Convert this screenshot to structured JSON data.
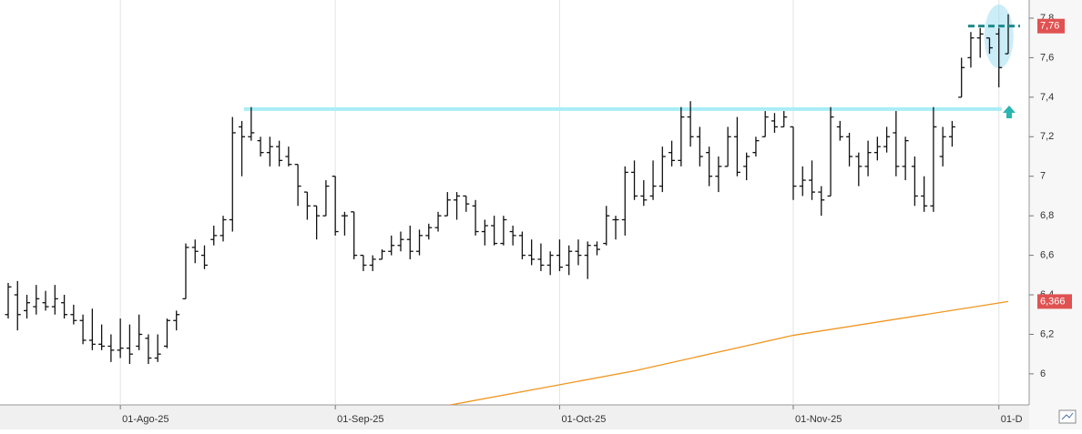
{
  "chart_data": {
    "type": "ohlc",
    "categories": [
      null,
      null,
      null,
      null,
      null,
      null,
      null,
      null,
      null,
      null,
      null,
      null,
      "01-Ago-25",
      null,
      null,
      null,
      null,
      null,
      null,
      null,
      null,
      null,
      null,
      null,
      null,
      null,
      null,
      null,
      null,
      null,
      null,
      null,
      null,
      null,
      null,
      "01-Sep-25",
      null,
      null,
      null,
      null,
      null,
      null,
      null,
      null,
      null,
      null,
      null,
      null,
      null,
      null,
      null,
      null,
      null,
      null,
      null,
      null,
      null,
      null,
      null,
      "01-Oct-25",
      null,
      null,
      null,
      null,
      null,
      null,
      null,
      null,
      null,
      null,
      null,
      null,
      null,
      null,
      null,
      null,
      null,
      null,
      null,
      null,
      null,
      null,
      null,
      null,
      "01-Nov-25",
      null,
      null,
      null,
      null,
      null,
      null,
      null,
      null,
      null,
      null,
      null,
      null,
      null,
      null,
      null,
      null,
      null,
      null,
      null,
      null,
      null,
      "01-D",
      null
    ],
    "bars": [
      [
        6.3,
        6.46,
        6.28,
        6.44
      ],
      [
        6.4,
        6.47,
        6.22,
        6.3
      ],
      [
        6.32,
        6.4,
        6.28,
        6.36
      ],
      [
        6.34,
        6.45,
        6.3,
        6.38
      ],
      [
        6.36,
        6.42,
        6.32,
        6.34
      ],
      [
        6.34,
        6.45,
        6.3,
        6.38
      ],
      [
        6.36,
        6.4,
        6.28,
        6.3
      ],
      [
        6.3,
        6.35,
        6.25,
        6.27
      ],
      [
        6.27,
        6.3,
        6.15,
        6.17
      ],
      [
        6.17,
        6.33,
        6.12,
        6.15
      ],
      [
        6.15,
        6.25,
        6.12,
        6.14
      ],
      [
        6.14,
        6.2,
        6.06,
        6.12
      ],
      [
        6.12,
        6.28,
        6.08,
        6.13
      ],
      [
        6.13,
        6.25,
        6.05,
        6.1
      ],
      [
        6.14,
        6.3,
        6.12,
        6.2
      ],
      [
        6.18,
        6.2,
        6.05,
        6.08
      ],
      [
        6.08,
        6.2,
        6.06,
        6.1
      ],
      [
        6.14,
        6.28,
        6.13,
        6.27
      ],
      [
        6.27,
        6.32,
        6.22,
        6.3
      ],
      [
        6.38,
        6.66,
        6.38,
        6.64
      ],
      [
        6.64,
        6.68,
        6.56,
        6.62
      ],
      [
        6.6,
        6.65,
        6.53,
        6.55
      ],
      [
        6.68,
        6.75,
        6.65,
        6.7
      ],
      [
        6.7,
        6.8,
        6.67,
        6.78
      ],
      [
        6.78,
        7.3,
        6.72,
        7.22
      ],
      [
        7.25,
        7.28,
        7.0,
        7.2
      ],
      [
        7.2,
        7.35,
        7.18,
        7.22
      ],
      [
        7.18,
        7.2,
        7.1,
        7.12
      ],
      [
        7.12,
        7.2,
        7.05,
        7.15
      ],
      [
        7.15,
        7.18,
        7.05,
        7.08
      ],
      [
        7.1,
        7.15,
        7.05,
        7.06
      ],
      [
        7.06,
        7.06,
        6.85,
        6.95
      ],
      [
        6.92,
        6.92,
        6.78,
        6.85
      ],
      [
        6.85,
        6.85,
        6.68,
        6.8
      ],
      [
        6.8,
        6.98,
        6.8,
        6.95
      ],
      [
        7.0,
        7.0,
        6.7,
        6.72
      ],
      [
        6.8,
        6.82,
        6.7,
        6.8
      ],
      [
        6.82,
        6.82,
        6.58,
        6.6
      ],
      [
        6.6,
        6.6,
        6.52,
        6.55
      ],
      [
        6.55,
        6.6,
        6.52,
        6.58
      ],
      [
        6.58,
        6.63,
        6.58,
        6.62
      ],
      [
        6.62,
        6.7,
        6.6,
        6.65
      ],
      [
        6.65,
        6.72,
        6.62,
        6.68
      ],
      [
        6.68,
        6.75,
        6.58,
        6.62
      ],
      [
        6.62,
        6.73,
        6.6,
        6.7
      ],
      [
        6.7,
        6.76,
        6.68,
        6.74
      ],
      [
        6.74,
        6.82,
        6.72,
        6.8
      ],
      [
        6.8,
        6.92,
        6.8,
        6.88
      ],
      [
        6.88,
        6.92,
        6.78,
        6.9
      ],
      [
        6.9,
        6.9,
        6.82,
        6.86
      ],
      [
        6.85,
        6.88,
        6.7,
        6.72
      ],
      [
        6.72,
        6.78,
        6.65,
        6.75
      ],
      [
        6.75,
        6.8,
        6.65,
        6.66
      ],
      [
        6.66,
        6.8,
        6.65,
        6.78
      ],
      [
        6.72,
        6.75,
        6.65,
        6.7
      ],
      [
        6.7,
        6.72,
        6.58,
        6.6
      ],
      [
        6.6,
        6.68,
        6.55,
        6.58
      ],
      [
        6.58,
        6.66,
        6.52,
        6.55
      ],
      [
        6.55,
        6.62,
        6.5,
        6.6
      ],
      [
        6.6,
        6.68,
        6.52,
        6.54
      ],
      [
        6.55,
        6.65,
        6.5,
        6.62
      ],
      [
        6.62,
        6.68,
        6.55,
        6.6
      ],
      [
        6.6,
        6.67,
        6.48,
        6.65
      ],
      [
        6.65,
        6.67,
        6.6,
        6.63
      ],
      [
        6.66,
        6.85,
        6.65,
        6.8
      ],
      [
        6.78,
        6.8,
        6.68,
        6.78
      ],
      [
        6.78,
        7.05,
        6.7,
        7.02
      ],
      [
        7.02,
        7.08,
        6.88,
        6.9
      ],
      [
        6.9,
        6.98,
        6.85,
        6.88
      ],
      [
        6.9,
        7.08,
        6.88,
        6.95
      ],
      [
        6.95,
        7.15,
        6.92,
        7.1
      ],
      [
        7.12,
        7.18,
        7.05,
        7.08
      ],
      [
        7.08,
        7.35,
        7.05,
        7.3
      ],
      [
        7.3,
        7.38,
        7.15,
        7.2
      ],
      [
        7.2,
        7.25,
        7.05,
        7.1
      ],
      [
        7.12,
        7.15,
        6.95,
        7.0
      ],
      [
        7.0,
        7.1,
        6.92,
        7.05
      ],
      [
        7.05,
        7.25,
        7.05,
        7.2
      ],
      [
        7.2,
        7.3,
        7.0,
        7.02
      ],
      [
        7.05,
        7.12,
        6.98,
        7.1
      ],
      [
        7.12,
        7.2,
        7.1,
        7.18
      ],
      [
        7.2,
        7.33,
        7.2,
        7.3
      ],
      [
        7.28,
        7.32,
        7.22,
        7.25
      ],
      [
        7.25,
        7.33,
        7.25,
        7.3
      ],
      [
        7.25,
        7.25,
        6.88,
        6.95
      ],
      [
        6.95,
        7.05,
        6.9,
        6.98
      ],
      [
        6.98,
        7.08,
        6.88,
        6.92
      ],
      [
        6.92,
        6.95,
        6.8,
        6.88
      ],
      [
        6.9,
        7.35,
        6.9,
        7.3
      ],
      [
        7.25,
        7.28,
        7.18,
        7.2
      ],
      [
        7.2,
        7.22,
        7.05,
        7.1
      ],
      [
        7.1,
        7.12,
        6.95,
        7.05
      ],
      [
        7.05,
        7.18,
        7.0,
        7.12
      ],
      [
        7.12,
        7.2,
        7.08,
        7.15
      ],
      [
        7.15,
        7.25,
        7.12,
        7.2
      ],
      [
        7.22,
        7.33,
        7.0,
        7.05
      ],
      [
        7.05,
        7.2,
        6.98,
        7.18
      ],
      [
        7.05,
        7.1,
        6.85,
        6.9
      ],
      [
        6.9,
        7.0,
        6.82,
        6.85
      ],
      [
        6.85,
        7.35,
        6.82,
        7.25
      ],
      [
        7.1,
        7.25,
        7.05,
        7.2
      ],
      [
        7.2,
        7.28,
        7.15,
        7.25
      ],
      [
        7.4,
        7.6,
        7.4,
        7.55
      ],
      [
        7.6,
        7.73,
        7.55,
        7.7
      ],
      [
        7.7,
        7.75,
        7.6,
        7.72
      ],
      [
        7.7,
        7.7,
        7.62,
        7.65
      ],
      [
        7.72,
        7.75,
        7.45,
        7.55
      ],
      [
        7.62,
        7.82,
        7.62,
        7.76
      ]
    ],
    "bar_color": "#111111",
    "ma": {
      "x": [
        47,
        67,
        84,
        107
      ],
      "values": [
        5.84,
        6.015,
        6.195,
        6.366
      ],
      "color": "#f0951e"
    },
    "resistance": 7.34,
    "last_price": {
      "value": 7.76,
      "label": "7,76"
    },
    "ma_price": {
      "value": 6.366,
      "label": "6,366"
    },
    "ylim": [
      5.843,
      7.892
    ],
    "yticks": [
      6,
      {
        "value": 6.2,
        "label": "6,2"
      },
      {
        "value": 6.4,
        "label": "6,4"
      },
      {
        "value": 6.6,
        "label": "6,6"
      },
      {
        "value": 6.8,
        "label": "6,8"
      },
      7,
      {
        "value": 7.2,
        "label": "7,2"
      },
      {
        "value": 7.4,
        "label": "7,4"
      },
      {
        "value": 7.6,
        "label": "7,6"
      },
      {
        "value": 7.8,
        "label": "7,8"
      }
    ],
    "grid": true
  }
}
